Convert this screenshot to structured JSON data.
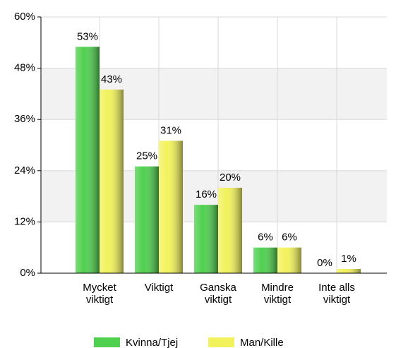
{
  "chart_data": {
    "type": "bar",
    "categories": [
      "Mycket\nviktigt",
      "Viktigt",
      "Ganska\nviktigt",
      "Mindre\nviktigt",
      "Inte alls\nviktigt"
    ],
    "series": [
      {
        "name": "Kvinna/Tjej",
        "color": "#4fd04f",
        "values": [
          53,
          25,
          16,
          6,
          0
        ],
        "value_labels": [
          "53%",
          "25%",
          "16%",
          "6%",
          "0%"
        ]
      },
      {
        "name": "Man/Kille",
        "color": "#f2f25c",
        "values": [
          43,
          31,
          20,
          6,
          1
        ],
        "value_labels": [
          "43%",
          "31%",
          "20%",
          "6%",
          "1%"
        ]
      }
    ],
    "ylim": [
      0,
      60
    ],
    "yticks": [
      {
        "value": 0,
        "label": "0%"
      },
      {
        "value": 12,
        "label": "12%"
      },
      {
        "value": 24,
        "label": "24%"
      },
      {
        "value": 36,
        "label": "36%"
      },
      {
        "value": 48,
        "label": "48%"
      },
      {
        "value": 60,
        "label": "60%"
      }
    ],
    "grid": true,
    "legend": "bottom"
  }
}
